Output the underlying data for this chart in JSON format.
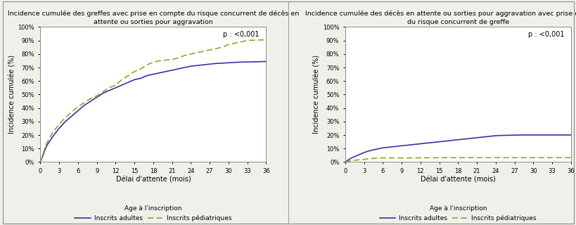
{
  "plot1": {
    "title1": "Incidence cumulée des greffes avec prise en compte du risque concurrent de décès en",
    "title2": "attente ou sorties pour aggravation",
    "ylabel": "Incidence cumulée (%)",
    "xlabel": "Délai d'attente (mois)",
    "pvalue": "p : <0,001",
    "adults_x": [
      0,
      1,
      2,
      3,
      4,
      5,
      6,
      7,
      8,
      9,
      10,
      11,
      12,
      13,
      14,
      15,
      16,
      17,
      18,
      19,
      20,
      21,
      22,
      23,
      24,
      25,
      26,
      27,
      28,
      29,
      30,
      31,
      32,
      33,
      34,
      35,
      36
    ],
    "adults_y": [
      0,
      12,
      19,
      25,
      30,
      34,
      38,
      42,
      45,
      48,
      51,
      53,
      55,
      57,
      59,
      61,
      62,
      64,
      65,
      66,
      67,
      68,
      69,
      70,
      71,
      71.5,
      72,
      72.5,
      73,
      73.2,
      73.5,
      73.8,
      74,
      74.1,
      74.2,
      74.3,
      74.5
    ],
    "peds_x": [
      0,
      1,
      2,
      3,
      4,
      5,
      6,
      7,
      8,
      9,
      10,
      11,
      12,
      13,
      14,
      15,
      16,
      17,
      18,
      19,
      20,
      21,
      22,
      23,
      24,
      25,
      26,
      27,
      28,
      29,
      30,
      31,
      32,
      33,
      34,
      35,
      36
    ],
    "peds_y": [
      0,
      14,
      22,
      28,
      33,
      37,
      41,
      44,
      47,
      49,
      52,
      55,
      57,
      61,
      64,
      67,
      69,
      72,
      74,
      75,
      75.5,
      76,
      77,
      79,
      80,
      81,
      82,
      83,
      84,
      85,
      87,
      88,
      89,
      90,
      90.2,
      90.4,
      90.5
    ],
    "adults_color": "#3333aa",
    "peds_color": "#88aa22",
    "adults_label": "Inscrits adultes",
    "peds_label": "Inscrits pédiatriques",
    "legend_prefix": "Age à l'inscription",
    "ylim": [
      0,
      100
    ],
    "xlim": [
      0,
      36
    ],
    "yticks": [
      0,
      10,
      20,
      30,
      40,
      50,
      60,
      70,
      80,
      90,
      100
    ]
  },
  "plot2": {
    "title1": "Incidence cumulée des décès en attente ou sorties pour aggravation avec prise en compte",
    "title2": "du risque concurrent de greffe",
    "ylabel": "Incidence cumulée (%)",
    "xlabel": "Délai d'attente (mois)",
    "pvalue": "p : <0,001",
    "adults_x": [
      0,
      1,
      2,
      3,
      4,
      5,
      6,
      7,
      8,
      9,
      10,
      11,
      12,
      13,
      14,
      15,
      16,
      17,
      18,
      19,
      20,
      21,
      22,
      23,
      24,
      25,
      26,
      27,
      28,
      29,
      30,
      31,
      32,
      33,
      34,
      35,
      36
    ],
    "adults_y": [
      0,
      3,
      5,
      7,
      8.5,
      9.5,
      10.5,
      11,
      11.5,
      12,
      12.5,
      13,
      13.5,
      14,
      14.5,
      15,
      15.5,
      16,
      16.5,
      17,
      17.5,
      18,
      18.5,
      19,
      19.5,
      19.7,
      19.8,
      19.9,
      20,
      20.0,
      20.0,
      20.0,
      20.0,
      20.0,
      20.0,
      20.0,
      20.0
    ],
    "peds_x": [
      0,
      1,
      2,
      3,
      4,
      5,
      6,
      7,
      8,
      9,
      10,
      11,
      12,
      13,
      14,
      15,
      16,
      17,
      18,
      19,
      20,
      21,
      22,
      23,
      24,
      25,
      26,
      27,
      28,
      29,
      30,
      31,
      32,
      33,
      34,
      35,
      36
    ],
    "peds_y": [
      0,
      1,
      1.5,
      2,
      2.5,
      2.8,
      3,
      3.0,
      3.0,
      3.0,
      3.0,
      3.0,
      3.1,
      3.1,
      3.1,
      3.2,
      3.2,
      3.2,
      3.2,
      3.2,
      3.2,
      3.2,
      3.2,
      3.2,
      3.2,
      3.2,
      3.2,
      3.2,
      3.2,
      3.2,
      3.2,
      3.2,
      3.2,
      3.2,
      3.2,
      3.2,
      3.2
    ],
    "adults_color": "#3333aa",
    "peds_color": "#88aa22",
    "adults_label": "Inscrits adultes",
    "peds_label": "Inscrits pédiatriques",
    "legend_prefix": "Age à l'inscription",
    "ylim": [
      0,
      100
    ],
    "xlim": [
      0,
      36
    ],
    "yticks": [
      0,
      10,
      20,
      30,
      40,
      50,
      60,
      70,
      80,
      90,
      100
    ]
  },
  "xticks": [
    0,
    3,
    6,
    9,
    12,
    15,
    18,
    21,
    24,
    27,
    30,
    33,
    36
  ],
  "bg_color": "#f0f0eb",
  "plot_bg": "#ffffff",
  "border_color": "#888888"
}
